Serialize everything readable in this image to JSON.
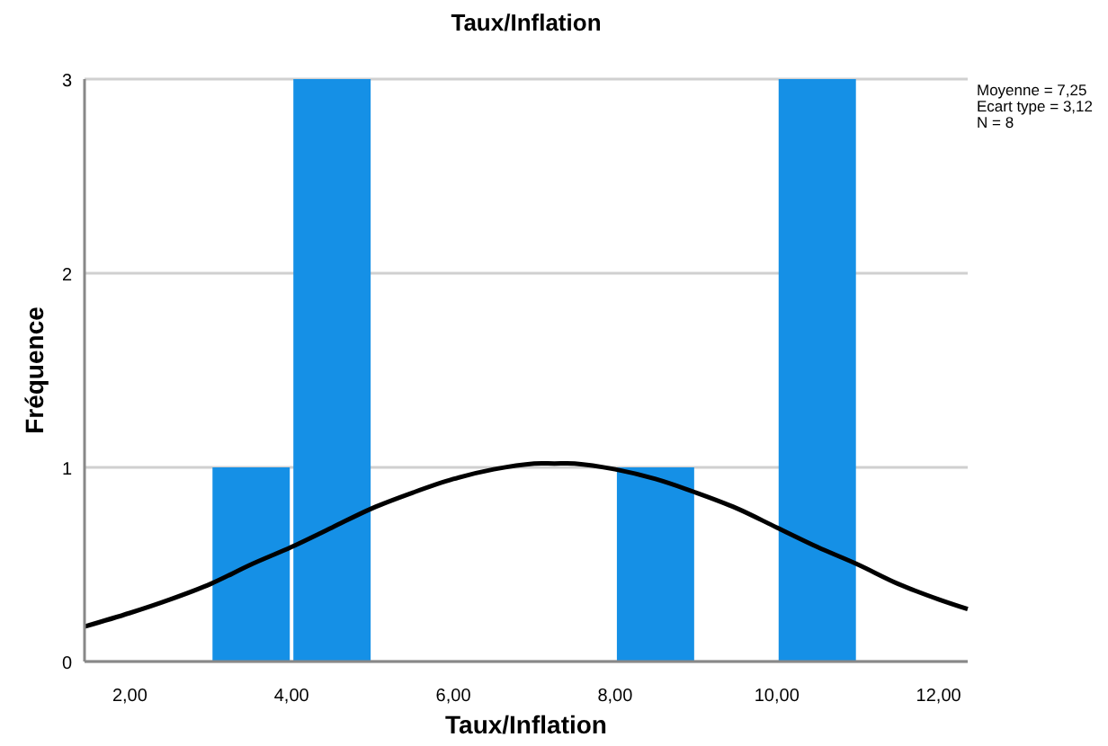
{
  "chart_data": {
    "type": "histogram",
    "title": "Taux/Inflation",
    "xlabel": "Taux/Inflation",
    "ylabel": "Fréquence",
    "bins": [
      3,
      4,
      5,
      6,
      7,
      8,
      9,
      10,
      11
    ],
    "series": [
      {
        "color": "#1590e6",
        "values": [
          1,
          3,
          0,
          0,
          0,
          1,
          0,
          3
        ]
      },
      {
        "type": "line",
        "color": "#000000",
        "x": [
          1.44,
          2,
          2.5,
          3,
          3.5,
          4,
          4.5,
          5,
          5.5,
          6,
          6.5,
          7,
          7.25,
          7.5,
          8,
          8.5,
          9,
          9.5,
          10,
          10.5,
          11,
          11.5,
          12,
          12.36
        ],
        "values": [
          0.18,
          0.25,
          0.32,
          0.4,
          0.5,
          0.59,
          0.69,
          0.79,
          0.87,
          0.94,
          0.99,
          1.02,
          1.02,
          1.02,
          0.99,
          0.94,
          0.87,
          0.79,
          0.69,
          0.59,
          0.5,
          0.4,
          0.32,
          0.27
        ]
      }
    ],
    "xlim": [
      1.44,
      12.36
    ],
    "xticks": [
      {
        "value": 2,
        "label": "2,00"
      },
      {
        "value": 4,
        "label": "4,00"
      },
      {
        "value": 6,
        "label": "6,00"
      },
      {
        "value": 8,
        "label": "8,00"
      },
      {
        "value": 10,
        "label": "10,00"
      },
      {
        "value": 12,
        "label": "12,00"
      }
    ],
    "ylim": [
      0,
      3
    ],
    "yticks": [
      0,
      1,
      2,
      3
    ],
    "grid": "y",
    "marker": "none",
    "line_style": "solid",
    "annotations": [
      "Moyenne = 7,25",
      "Ecart type = 3,12",
      "N = 8"
    ]
  }
}
